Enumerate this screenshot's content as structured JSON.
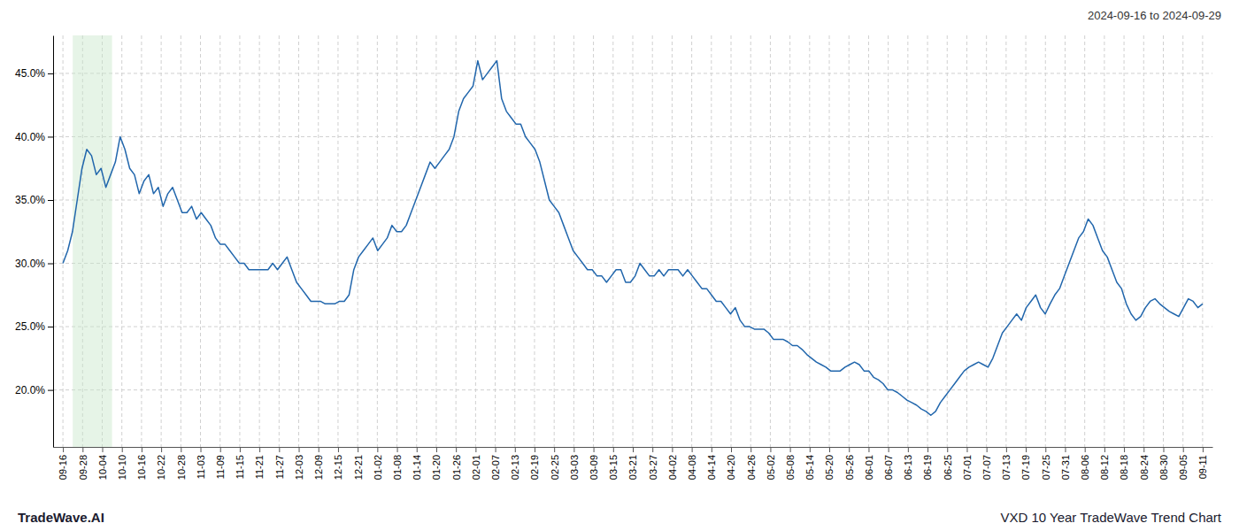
{
  "chart_data": {
    "type": "line",
    "title": "2024-09-16 to 2024-09-29",
    "annotations": [
      "TradeWave.AI",
      "VXD 10 Year TradeWave Trend Chart"
    ],
    "color": "#2166ac",
    "grid": true,
    "highlight": {
      "range": [
        0.5,
        2.5
      ],
      "color": "#c8e6c9"
    },
    "xlim": [
      -0.5,
      58.5
    ],
    "xticks": [
      {
        "value": 0,
        "label": "09-16"
      },
      {
        "value": 1,
        "label": "09-28"
      },
      {
        "value": 2,
        "label": "10-04"
      },
      {
        "value": 3,
        "label": "10-10"
      },
      {
        "value": 4,
        "label": "10-16"
      },
      {
        "value": 5,
        "label": "10-22"
      },
      {
        "value": 6,
        "label": "10-28"
      },
      {
        "value": 7,
        "label": "11-03"
      },
      {
        "value": 8,
        "label": "11-09"
      },
      {
        "value": 9,
        "label": "11-15"
      },
      {
        "value": 10,
        "label": "11-21"
      },
      {
        "value": 11,
        "label": "11-27"
      },
      {
        "value": 12,
        "label": "12-03"
      },
      {
        "value": 13,
        "label": "12-09"
      },
      {
        "value": 14,
        "label": "12-15"
      },
      {
        "value": 15,
        "label": "12-21"
      },
      {
        "value": 16,
        "label": "01-02"
      },
      {
        "value": 17,
        "label": "01-08"
      },
      {
        "value": 18,
        "label": "01-14"
      },
      {
        "value": 19,
        "label": "01-20"
      },
      {
        "value": 20,
        "label": "01-26"
      },
      {
        "value": 21,
        "label": "02-01"
      },
      {
        "value": 22,
        "label": "02-07"
      },
      {
        "value": 23,
        "label": "02-13"
      },
      {
        "value": 24,
        "label": "02-19"
      },
      {
        "value": 25,
        "label": "02-25"
      },
      {
        "value": 26,
        "label": "03-03"
      },
      {
        "value": 27,
        "label": "03-09"
      },
      {
        "value": 28,
        "label": "03-15"
      },
      {
        "value": 29,
        "label": "03-21"
      },
      {
        "value": 30,
        "label": "03-27"
      },
      {
        "value": 31,
        "label": "04-02"
      },
      {
        "value": 32,
        "label": "04-08"
      },
      {
        "value": 33,
        "label": "04-14"
      },
      {
        "value": 34,
        "label": "04-20"
      },
      {
        "value": 35,
        "label": "04-26"
      },
      {
        "value": 36,
        "label": "05-02"
      },
      {
        "value": 37,
        "label": "05-08"
      },
      {
        "value": 38,
        "label": "05-14"
      },
      {
        "value": 39,
        "label": "05-20"
      },
      {
        "value": 40,
        "label": "05-26"
      },
      {
        "value": 41,
        "label": "06-01"
      },
      {
        "value": 42,
        "label": "06-07"
      },
      {
        "value": 43,
        "label": "06-13"
      },
      {
        "value": 44,
        "label": "06-19"
      },
      {
        "value": 45,
        "label": "06-25"
      },
      {
        "value": 46,
        "label": "07-01"
      },
      {
        "value": 47,
        "label": "07-07"
      },
      {
        "value": 48,
        "label": "07-13"
      },
      {
        "value": 49,
        "label": "07-19"
      },
      {
        "value": 50,
        "label": "07-25"
      },
      {
        "value": 51,
        "label": "07-31"
      },
      {
        "value": 52,
        "label": "08-06"
      },
      {
        "value": 53,
        "label": "08-12"
      },
      {
        "value": 54,
        "label": "08-18"
      },
      {
        "value": 55,
        "label": "08-24"
      },
      {
        "value": 56,
        "label": "08-30"
      },
      {
        "value": 57,
        "label": "09-05"
      },
      {
        "value": 58,
        "label": "09-11"
      }
    ],
    "ylim": [
      0.155,
      0.48
    ],
    "yticks": [
      {
        "value": 0.2,
        "label": "20.0%"
      },
      {
        "value": 0.25,
        "label": "25.0%"
      },
      {
        "value": 0.3,
        "label": "30.0%"
      },
      {
        "value": 0.35,
        "label": "35.0%"
      },
      {
        "value": 0.4,
        "label": "40.0%"
      },
      {
        "value": 0.45,
        "label": "45.0%"
      }
    ],
    "x": [
      0,
      0.2427,
      0.4854,
      0.728,
      0.9707,
      1.2134,
      1.4561,
      1.6987,
      1.9414,
      2.1841,
      2.4268,
      2.6695,
      2.9121,
      3.1548,
      3.3975,
      3.6402,
      3.8828,
      4.1255,
      4.3682,
      4.6109,
      4.8536,
      5.0962,
      5.3389,
      5.5816,
      5.8243,
      6.0669,
      6.3096,
      6.5523,
      6.795,
      7.0377,
      7.2803,
      7.523,
      7.7657,
      8.0084,
      8.251,
      8.4937,
      8.7364,
      8.9791,
      9.2218,
      9.4644,
      9.7071,
      9.9498,
      10.1925,
      10.4351,
      10.6778,
      10.9205,
      11.1632,
      11.4059,
      11.6485,
      11.8912,
      12.1339,
      12.3766,
      12.6192,
      12.8619,
      13.1046,
      13.3473,
      13.59,
      13.8326,
      14.0753,
      14.318,
      14.5607,
      14.8033,
      15.046,
      15.2887,
      15.5314,
      15.7741,
      16.0167,
      16.2594,
      16.5021,
      16.7448,
      16.9874,
      17.2301,
      17.4728,
      17.7155,
      17.9582,
      18.2008,
      18.4435,
      18.6862,
      18.9289,
      19.1715,
      19.4142,
      19.6569,
      19.8996,
      20.1423,
      20.3849,
      20.6276,
      20.8703,
      21.113,
      21.3556,
      21.5983,
      21.841,
      22.0837,
      22.3264,
      22.569,
      22.8117,
      23.0544,
      23.2971,
      23.5397,
      23.7824,
      24.0251,
      24.2678,
      24.5105,
      24.7531,
      24.9958,
      25.2385,
      25.4812,
      25.7238,
      25.9665,
      26.2092,
      26.4519,
      26.6946,
      26.9372,
      27.1799,
      27.4226,
      27.6653,
      27.9079,
      28.1506,
      28.3933,
      28.636,
      28.8787,
      29.1213,
      29.364,
      29.6067,
      29.8494,
      30.0921,
      30.3347,
      30.5774,
      30.8201,
      31.0628,
      31.3054,
      31.5481,
      31.7908,
      32.0335,
      32.2762,
      32.5188,
      32.7615,
      33.0042,
      33.2469,
      33.4895,
      33.7322,
      33.9749,
      34.2176,
      34.4603,
      34.7029,
      34.9456,
      35.1883,
      35.431,
      35.6736,
      35.9163,
      36.159,
      36.4017,
      36.6444,
      36.887,
      37.1297,
      37.3724,
      37.6151,
      37.8577,
      38.1004,
      38.3431,
      38.5858,
      38.8285,
      39.0711,
      39.3138,
      39.5565,
      39.7992,
      40.0418,
      40.2845,
      40.5272,
      40.7699,
      41.0126,
      41.2552,
      41.4979,
      41.7406,
      41.9833,
      42.2259,
      42.4686,
      42.7113,
      42.954,
      43.1967,
      43.4393,
      43.682,
      43.9247,
      44.1674,
      44.41,
      44.6527,
      44.8954,
      45.1381,
      45.3808,
      45.6234,
      45.8661,
      46.1088,
      46.3515,
      46.5941,
      46.8368,
      47.0795,
      47.3222,
      47.5649,
      47.8075,
      48.0502,
      48.2929,
      48.5356,
      48.7782,
      49.0209,
      49.2636,
      49.5063,
      49.749,
      49.9916,
      50.2343,
      50.477,
      50.7197,
      50.9623,
      51.205,
      51.4477,
      51.6904,
      51.9331,
      52.1757,
      52.4184,
      52.6611,
      52.9038,
      53.1464,
      53.3891,
      53.6318,
      53.8745,
      54.1172,
      54.3598,
      54.6025,
      54.8452,
      55.0879,
      55.3305,
      55.5732,
      55.8159,
      56.0586,
      56.3013,
      56.5439,
      56.7866,
      57.0293,
      57.272,
      57.5146,
      57.7573,
      58
    ],
    "values": [
      0.3,
      0.31,
      0.325,
      0.35,
      0.375,
      0.39,
      0.385,
      0.37,
      0.375,
      0.36,
      0.37,
      0.38,
      0.4,
      0.39,
      0.375,
      0.37,
      0.355,
      0.365,
      0.37,
      0.355,
      0.36,
      0.345,
      0.355,
      0.36,
      0.35,
      0.34,
      0.34,
      0.345,
      0.335,
      0.34,
      0.335,
      0.33,
      0.32,
      0.315,
      0.315,
      0.31,
      0.305,
      0.3,
      0.3,
      0.295,
      0.295,
      0.295,
      0.295,
      0.295,
      0.3,
      0.295,
      0.3,
      0.305,
      0.295,
      0.285,
      0.28,
      0.275,
      0.27,
      0.27,
      0.27,
      0.268,
      0.268,
      0.268,
      0.27,
      0.27,
      0.275,
      0.295,
      0.305,
      0.31,
      0.315,
      0.32,
      0.31,
      0.315,
      0.32,
      0.33,
      0.325,
      0.325,
      0.33,
      0.34,
      0.35,
      0.36,
      0.37,
      0.38,
      0.375,
      0.38,
      0.385,
      0.39,
      0.4,
      0.42,
      0.43,
      0.435,
      0.44,
      0.46,
      0.445,
      0.45,
      0.455,
      0.46,
      0.43,
      0.42,
      0.415,
      0.41,
      0.41,
      0.4,
      0.395,
      0.39,
      0.38,
      0.365,
      0.35,
      0.345,
      0.34,
      0.33,
      0.32,
      0.31,
      0.305,
      0.3,
      0.295,
      0.295,
      0.29,
      0.29,
      0.285,
      0.29,
      0.295,
      0.295,
      0.285,
      0.285,
      0.29,
      0.3,
      0.295,
      0.29,
      0.29,
      0.295,
      0.29,
      0.295,
      0.295,
      0.295,
      0.29,
      0.295,
      0.29,
      0.285,
      0.28,
      0.28,
      0.275,
      0.27,
      0.27,
      0.265,
      0.26,
      0.265,
      0.255,
      0.25,
      0.25,
      0.248,
      0.248,
      0.248,
      0.245,
      0.24,
      0.24,
      0.24,
      0.238,
      0.235,
      0.235,
      0.232,
      0.228,
      0.225,
      0.222,
      0.22,
      0.218,
      0.215,
      0.215,
      0.215,
      0.218,
      0.22,
      0.222,
      0.22,
      0.215,
      0.215,
      0.21,
      0.208,
      0.205,
      0.2,
      0.2,
      0.198,
      0.195,
      0.192,
      0.19,
      0.188,
      0.185,
      0.183,
      0.18,
      0.183,
      0.19,
      0.195,
      0.2,
      0.205,
      0.21,
      0.215,
      0.218,
      0.22,
      0.222,
      0.22,
      0.218,
      0.225,
      0.235,
      0.245,
      0.25,
      0.255,
      0.26,
      0.255,
      0.265,
      0.27,
      0.275,
      0.265,
      0.26,
      0.268,
      0.275,
      0.28,
      0.29,
      0.3,
      0.31,
      0.32,
      0.325,
      0.335,
      0.33,
      0.32,
      0.31,
      0.305,
      0.295,
      0.285,
      0.28,
      0.268,
      0.26,
      0.255,
      0.258,
      0.265,
      0.27,
      0.272,
      0.268,
      0.265,
      0.262,
      0.26,
      0.258,
      0.265,
      0.272,
      0.27,
      0.265,
      0.268
    ]
  }
}
